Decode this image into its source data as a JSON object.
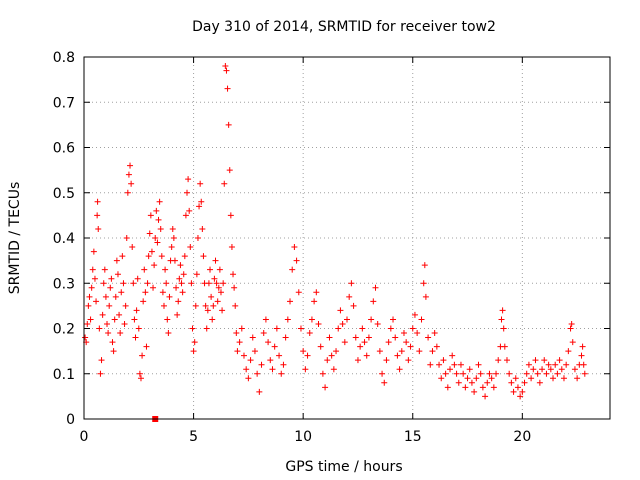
{
  "chart_data": {
    "type": "scatter",
    "title": "Day 310 of 2014, SRMTID for receiver tow2",
    "xlabel": "GPS time / hours",
    "ylabel": "SRMTID / TECUs",
    "xlim": [
      0,
      24
    ],
    "ylim": [
      0,
      0.8
    ],
    "xticks": [
      0,
      5,
      10,
      15,
      20
    ],
    "xtick_labels": [
      "0",
      "5",
      "10",
      "15",
      "20"
    ],
    "yticks": [
      0,
      0.1,
      0.2,
      0.3,
      0.4,
      0.5,
      0.6,
      0.7,
      0.8
    ],
    "ytick_labels": [
      "0",
      "0.1",
      "0.2",
      "0.3",
      "0.4",
      "0.5",
      "0.6",
      "0.7",
      "0.8"
    ],
    "grid": true,
    "marker": "plus",
    "color": "#ff0000",
    "series": [
      {
        "name": "SRMTID",
        "points": [
          [
            0.05,
            0.18
          ],
          [
            0.1,
            0.17
          ],
          [
            0.15,
            0.21
          ],
          [
            0.2,
            0.25
          ],
          [
            0.25,
            0.27
          ],
          [
            0.3,
            0.22
          ],
          [
            0.35,
            0.29
          ],
          [
            0.4,
            0.33
          ],
          [
            0.45,
            0.37
          ],
          [
            0.5,
            0.31
          ],
          [
            0.55,
            0.26
          ],
          [
            0.6,
            0.45
          ],
          [
            0.62,
            0.48
          ],
          [
            0.65,
            0.42
          ],
          [
            0.7,
            0.2
          ],
          [
            0.75,
            0.1
          ],
          [
            0.8,
            0.13
          ],
          [
            0.85,
            0.23
          ],
          [
            0.9,
            0.3
          ],
          [
            0.95,
            0.33
          ],
          [
            1.0,
            0.27
          ],
          [
            1.05,
            0.21
          ],
          [
            1.1,
            0.19
          ],
          [
            1.15,
            0.25
          ],
          [
            1.2,
            0.29
          ],
          [
            1.25,
            0.31
          ],
          [
            1.3,
            0.17
          ],
          [
            1.35,
            0.15
          ],
          [
            1.4,
            0.22
          ],
          [
            1.45,
            0.27
          ],
          [
            1.5,
            0.35
          ],
          [
            1.55,
            0.32
          ],
          [
            1.6,
            0.23
          ],
          [
            1.65,
            0.19
          ],
          [
            1.7,
            0.28
          ],
          [
            1.75,
            0.36
          ],
          [
            1.8,
            0.3
          ],
          [
            1.85,
            0.21
          ],
          [
            1.9,
            0.25
          ],
          [
            1.95,
            0.4
          ],
          [
            2.0,
            0.5
          ],
          [
            2.05,
            0.54
          ],
          [
            2.1,
            0.56
          ],
          [
            2.15,
            0.52
          ],
          [
            2.2,
            0.38
          ],
          [
            2.25,
            0.3
          ],
          [
            2.3,
            0.22
          ],
          [
            2.35,
            0.18
          ],
          [
            2.4,
            0.24
          ],
          [
            2.45,
            0.31
          ],
          [
            2.5,
            0.2
          ],
          [
            2.55,
            0.1
          ],
          [
            2.6,
            0.09
          ],
          [
            2.65,
            0.14
          ],
          [
            2.7,
            0.26
          ],
          [
            2.75,
            0.33
          ],
          [
            2.8,
            0.28
          ],
          [
            2.85,
            0.16
          ],
          [
            2.9,
            0.3
          ],
          [
            2.95,
            0.36
          ],
          [
            3.0,
            0.41
          ],
          [
            3.05,
            0.45
          ],
          [
            3.1,
            0.37
          ],
          [
            3.15,
            0.29
          ],
          [
            3.2,
            0.34
          ],
          [
            3.25,
            0.4
          ],
          [
            3.3,
            0.46
          ],
          [
            3.35,
            0.39
          ],
          [
            3.4,
            0.44
          ],
          [
            3.45,
            0.48
          ],
          [
            3.5,
            0.42
          ],
          [
            3.55,
            0.36
          ],
          [
            3.6,
            0.28
          ],
          [
            3.65,
            0.25
          ],
          [
            3.7,
            0.33
          ],
          [
            3.75,
            0.3
          ],
          [
            3.8,
            0.22
          ],
          [
            3.85,
            0.19
          ],
          [
            3.9,
            0.27
          ],
          [
            3.95,
            0.35
          ],
          [
            4.0,
            0.38
          ],
          [
            4.05,
            0.42
          ],
          [
            4.1,
            0.4
          ],
          [
            4.15,
            0.35
          ],
          [
            4.2,
            0.29
          ],
          [
            4.25,
            0.23
          ],
          [
            4.3,
            0.26
          ],
          [
            4.35,
            0.31
          ],
          [
            4.4,
            0.34
          ],
          [
            4.45,
            0.3
          ],
          [
            4.5,
            0.28
          ],
          [
            4.55,
            0.32
          ],
          [
            4.6,
            0.36
          ],
          [
            4.65,
            0.45
          ],
          [
            4.7,
            0.5
          ],
          [
            4.75,
            0.53
          ],
          [
            4.8,
            0.46
          ],
          [
            4.85,
            0.38
          ],
          [
            4.9,
            0.3
          ],
          [
            4.95,
            0.2
          ],
          [
            5.0,
            0.15
          ],
          [
            5.05,
            0.17
          ],
          [
            5.1,
            0.25
          ],
          [
            5.15,
            0.32
          ],
          [
            5.2,
            0.4
          ],
          [
            5.25,
            0.47
          ],
          [
            5.3,
            0.52
          ],
          [
            5.35,
            0.48
          ],
          [
            5.4,
            0.42
          ],
          [
            5.45,
            0.36
          ],
          [
            5.5,
            0.3
          ],
          [
            5.55,
            0.25
          ],
          [
            5.6,
            0.2
          ],
          [
            5.65,
            0.24
          ],
          [
            5.7,
            0.3
          ],
          [
            5.75,
            0.33
          ],
          [
            5.8,
            0.27
          ],
          [
            5.85,
            0.22
          ],
          [
            5.9,
            0.25
          ],
          [
            5.95,
            0.31
          ],
          [
            6.0,
            0.35
          ],
          [
            6.05,
            0.3
          ],
          [
            6.1,
            0.26
          ],
          [
            6.15,
            0.29
          ],
          [
            6.2,
            0.33
          ],
          [
            6.25,
            0.28
          ],
          [
            6.3,
            0.24
          ],
          [
            6.35,
            0.3
          ],
          [
            6.4,
            0.52
          ],
          [
            6.45,
            0.78
          ],
          [
            6.5,
            0.77
          ],
          [
            6.55,
            0.73
          ],
          [
            6.6,
            0.65
          ],
          [
            6.65,
            0.55
          ],
          [
            6.7,
            0.45
          ],
          [
            6.75,
            0.38
          ],
          [
            6.8,
            0.32
          ],
          [
            6.85,
            0.29
          ],
          [
            6.9,
            0.25
          ],
          [
            6.95,
            0.19
          ],
          [
            7.0,
            0.15
          ],
          [
            7.1,
            0.17
          ],
          [
            7.2,
            0.2
          ],
          [
            7.3,
            0.14
          ],
          [
            7.4,
            0.11
          ],
          [
            7.5,
            0.09
          ],
          [
            7.6,
            0.13
          ],
          [
            7.7,
            0.18
          ],
          [
            7.8,
            0.15
          ],
          [
            7.9,
            0.1
          ],
          [
            8.0,
            0.06
          ],
          [
            8.1,
            0.12
          ],
          [
            8.2,
            0.19
          ],
          [
            8.3,
            0.22
          ],
          [
            8.4,
            0.17
          ],
          [
            8.5,
            0.13
          ],
          [
            8.6,
            0.11
          ],
          [
            8.7,
            0.16
          ],
          [
            8.8,
            0.2
          ],
          [
            8.9,
            0.14
          ],
          [
            9.0,
            0.1
          ],
          [
            9.1,
            0.12
          ],
          [
            9.2,
            0.18
          ],
          [
            9.3,
            0.22
          ],
          [
            9.4,
            0.26
          ],
          [
            9.5,
            0.33
          ],
          [
            9.6,
            0.38
          ],
          [
            9.7,
            0.35
          ],
          [
            9.8,
            0.28
          ],
          [
            9.9,
            0.2
          ],
          [
            10.0,
            0.15
          ],
          [
            10.1,
            0.11
          ],
          [
            10.2,
            0.14
          ],
          [
            10.3,
            0.19
          ],
          [
            10.4,
            0.22
          ],
          [
            10.5,
            0.26
          ],
          [
            10.6,
            0.28
          ],
          [
            10.7,
            0.21
          ],
          [
            10.8,
            0.16
          ],
          [
            10.9,
            0.1
          ],
          [
            11.0,
            0.07
          ],
          [
            11.1,
            0.13
          ],
          [
            11.2,
            0.18
          ],
          [
            11.3,
            0.14
          ],
          [
            11.4,
            0.11
          ],
          [
            11.5,
            0.15
          ],
          [
            11.6,
            0.2
          ],
          [
            11.7,
            0.24
          ],
          [
            11.8,
            0.21
          ],
          [
            11.9,
            0.17
          ],
          [
            12.0,
            0.22
          ],
          [
            12.1,
            0.27
          ],
          [
            12.2,
            0.3
          ],
          [
            12.3,
            0.25
          ],
          [
            12.4,
            0.18
          ],
          [
            12.5,
            0.13
          ],
          [
            12.6,
            0.16
          ],
          [
            12.7,
            0.2
          ],
          [
            12.8,
            0.17
          ],
          [
            12.9,
            0.14
          ],
          [
            13.0,
            0.18
          ],
          [
            13.1,
            0.22
          ],
          [
            13.2,
            0.26
          ],
          [
            13.3,
            0.29
          ],
          [
            13.4,
            0.21
          ],
          [
            13.5,
            0.15
          ],
          [
            13.6,
            0.1
          ],
          [
            13.7,
            0.08
          ],
          [
            13.8,
            0.13
          ],
          [
            13.9,
            0.17
          ],
          [
            14.0,
            0.2
          ],
          [
            14.1,
            0.22
          ],
          [
            14.2,
            0.18
          ],
          [
            14.3,
            0.14
          ],
          [
            14.4,
            0.11
          ],
          [
            14.5,
            0.15
          ],
          [
            14.6,
            0.19
          ],
          [
            14.7,
            0.17
          ],
          [
            14.8,
            0.13
          ],
          [
            14.9,
            0.16
          ],
          [
            15.0,
            0.2
          ],
          [
            15.1,
            0.23
          ],
          [
            15.2,
            0.19
          ],
          [
            15.3,
            0.15
          ],
          [
            15.4,
            0.22
          ],
          [
            15.5,
            0.3
          ],
          [
            15.55,
            0.34
          ],
          [
            15.6,
            0.27
          ],
          [
            15.7,
            0.18
          ],
          [
            15.8,
            0.12
          ],
          [
            15.9,
            0.15
          ],
          [
            16.0,
            0.19
          ],
          [
            16.1,
            0.16
          ],
          [
            16.2,
            0.12
          ],
          [
            16.3,
            0.09
          ],
          [
            16.4,
            0.13
          ],
          [
            16.5,
            0.1
          ],
          [
            16.6,
            0.07
          ],
          [
            16.7,
            0.11
          ],
          [
            16.8,
            0.14
          ],
          [
            16.9,
            0.12
          ],
          [
            17.0,
            0.1
          ],
          [
            17.1,
            0.08
          ],
          [
            17.2,
            0.12
          ],
          [
            17.3,
            0.1
          ],
          [
            17.4,
            0.07
          ],
          [
            17.5,
            0.09
          ],
          [
            17.6,
            0.11
          ],
          [
            17.7,
            0.08
          ],
          [
            17.8,
            0.06
          ],
          [
            17.9,
            0.09
          ],
          [
            18.0,
            0.12
          ],
          [
            18.1,
            0.1
          ],
          [
            18.2,
            0.07
          ],
          [
            18.3,
            0.05
          ],
          [
            18.4,
            0.08
          ],
          [
            18.5,
            0.1
          ],
          [
            18.6,
            0.09
          ],
          [
            18.7,
            0.07
          ],
          [
            18.8,
            0.1
          ],
          [
            18.9,
            0.13
          ],
          [
            19.0,
            0.16
          ],
          [
            19.05,
            0.22
          ],
          [
            19.1,
            0.24
          ],
          [
            19.15,
            0.2
          ],
          [
            19.2,
            0.16
          ],
          [
            19.3,
            0.13
          ],
          [
            19.4,
            0.1
          ],
          [
            19.5,
            0.08
          ],
          [
            19.6,
            0.06
          ],
          [
            19.7,
            0.09
          ],
          [
            19.8,
            0.07
          ],
          [
            19.9,
            0.05
          ],
          [
            20.0,
            0.06
          ],
          [
            20.1,
            0.08
          ],
          [
            20.2,
            0.1
          ],
          [
            20.3,
            0.12
          ],
          [
            20.4,
            0.09
          ],
          [
            20.5,
            0.11
          ],
          [
            20.6,
            0.13
          ],
          [
            20.7,
            0.1
          ],
          [
            20.8,
            0.08
          ],
          [
            20.9,
            0.11
          ],
          [
            21.0,
            0.13
          ],
          [
            21.1,
            0.1
          ],
          [
            21.2,
            0.12
          ],
          [
            21.3,
            0.11
          ],
          [
            21.4,
            0.09
          ],
          [
            21.5,
            0.12
          ],
          [
            21.6,
            0.1
          ],
          [
            21.7,
            0.13
          ],
          [
            21.8,
            0.11
          ],
          [
            21.9,
            0.09
          ],
          [
            22.0,
            0.12
          ],
          [
            22.1,
            0.15
          ],
          [
            22.2,
            0.2
          ],
          [
            22.25,
            0.21
          ],
          [
            22.3,
            0.17
          ],
          [
            22.4,
            0.11
          ],
          [
            22.5,
            0.09
          ],
          [
            22.6,
            0.12
          ],
          [
            22.7,
            0.14
          ],
          [
            22.75,
            0.16
          ],
          [
            22.8,
            0.12
          ],
          [
            22.85,
            0.1
          ]
        ]
      }
    ],
    "outlier": {
      "x": 3.25,
      "y": 0
    }
  }
}
